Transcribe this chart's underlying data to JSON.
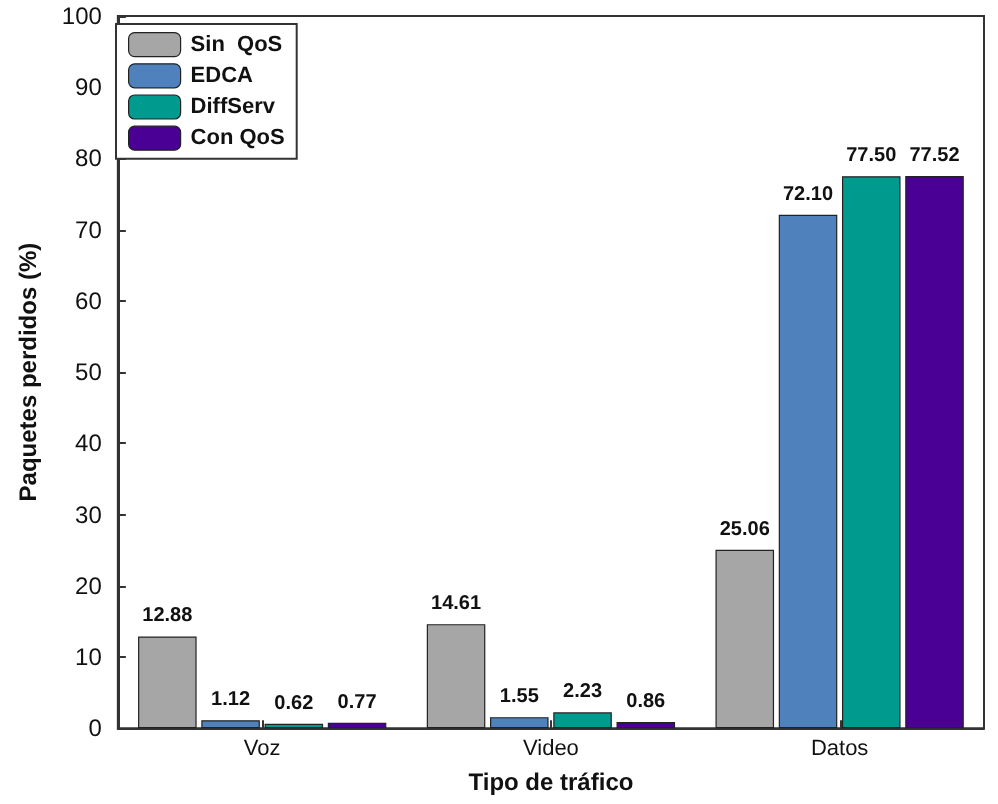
{
  "chart_data": {
    "type": "bar",
    "xlabel": "Tipo de tráfico",
    "ylabel": "Paquetes perdidos (%)",
    "categories": [
      "Voz",
      "Video",
      "Datos"
    ],
    "series": [
      {
        "name": "Sin  QoS",
        "color": "#a6a6a6",
        "values": [
          12.88,
          14.61,
          25.06
        ],
        "value_labels": [
          "12.88",
          "14.61",
          "25.06"
        ]
      },
      {
        "name": "EDCA",
        "color": "#4f81bd",
        "values": [
          1.12,
          1.55,
          72.1
        ],
        "value_labels": [
          "1.12",
          "1.55",
          "72.10"
        ]
      },
      {
        "name": "DiffServ",
        "color": "#009b8f",
        "values": [
          0.62,
          2.23,
          77.5
        ],
        "value_labels": [
          "0.62",
          "2.23",
          "77.50"
        ]
      },
      {
        "name": "Con QoS",
        "color": "#4b0095",
        "values": [
          0.77,
          0.86,
          77.52
        ],
        "value_labels": [
          "0.77",
          "0.86",
          "77.52"
        ]
      }
    ],
    "ylim": [
      0,
      100
    ],
    "yticks": [
      0,
      10,
      20,
      30,
      40,
      50,
      60,
      70,
      80,
      90,
      100
    ],
    "grid": false,
    "legend": "top left"
  }
}
